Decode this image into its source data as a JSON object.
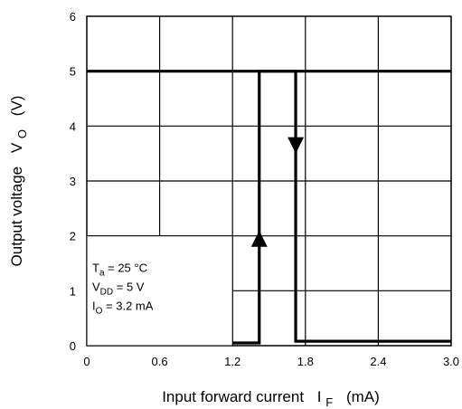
{
  "chart_data": {
    "type": "line",
    "xlabel": "Input forward current",
    "xlabel_symbol": "I",
    "xlabel_subscript": "F",
    "xlabel_unit": "(mA)",
    "ylabel": "Output voltage",
    "ylabel_symbol": "V",
    "ylabel_subscript": "O",
    "ylabel_unit": "(V)",
    "xlim": [
      0,
      3.0
    ],
    "ylim": [
      0,
      6
    ],
    "xticks": [
      "0",
      "0.6",
      "1.2",
      "1.8",
      "2.4",
      "3.0"
    ],
    "yticks": [
      "0",
      "1",
      "2",
      "3",
      "4",
      "5",
      "6"
    ],
    "grid": true,
    "series": [
      {
        "direction": "decreasing",
        "x": [
          0,
          1.72,
          1.72,
          3.0
        ],
        "y": [
          5,
          5,
          0.08,
          0.08
        ]
      },
      {
        "direction": "increasing",
        "x": [
          0,
          1.42,
          1.42,
          3.0
        ],
        "y": [
          0.05,
          0.05,
          5,
          5
        ]
      }
    ],
    "conditions": [
      {
        "sym": "T",
        "sub": "a",
        "rest": " = 25 °C"
      },
      {
        "sym": "V",
        "sub": "DD",
        "rest": " = 5 V"
      },
      {
        "sym": "I",
        "sub": "O",
        "rest": " = 3.2 mA"
      }
    ],
    "line_color": "#000000"
  }
}
